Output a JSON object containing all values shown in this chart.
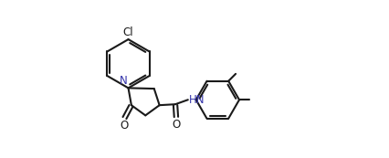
{
  "bg_color": "#ffffff",
  "line_color": "#1a1a1a",
  "n_color": "#3333aa",
  "o_color": "#1a1a1a",
  "cl_color": "#1a1a1a",
  "line_width": 1.5,
  "figsize": [
    4.27,
    1.73
  ],
  "dpi": 100,
  "xlim": [
    0.0,
    1.05
  ],
  "ylim": [
    0.08,
    0.95
  ]
}
